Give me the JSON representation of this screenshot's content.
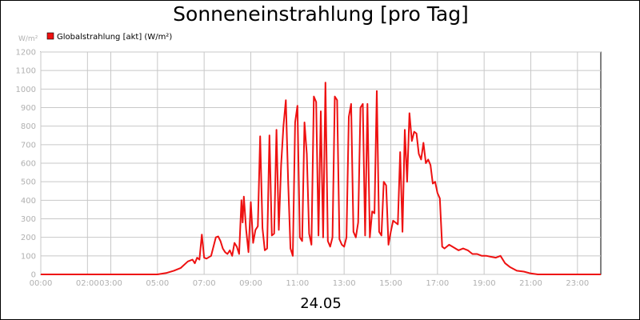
{
  "chart_data": {
    "type": "line",
    "title": "Sonneneinstrahlung [pro Tag]",
    "ylabel": "W/m²",
    "xlabel": "24.05",
    "ylim": [
      0,
      1200
    ],
    "xlim": [
      0,
      24
    ],
    "yticks": [
      0,
      100,
      200,
      300,
      400,
      500,
      600,
      700,
      800,
      900,
      1000,
      1100,
      1200
    ],
    "xticks": [
      {
        "label": "00:00",
        "x": 0
      },
      {
        "label": "02:00",
        "x": 2
      },
      {
        "label": "03:00",
        "x": 3
      },
      {
        "label": "05:00",
        "x": 5
      },
      {
        "label": "07:00",
        "x": 7
      },
      {
        "label": "09:00",
        "x": 9
      },
      {
        "label": "11:00",
        "x": 11
      },
      {
        "label": "13:00",
        "x": 13
      },
      {
        "label": "15:00",
        "x": 15
      },
      {
        "label": "17:00",
        "x": 17
      },
      {
        "label": "19:00",
        "x": 19
      },
      {
        "label": "21:00",
        "x": 21
      },
      {
        "label": "23:00",
        "x": 23
      }
    ],
    "grid": true,
    "legend": "top-left",
    "series": [
      {
        "name": "Globalstrahlung [akt] (W/m²)",
        "color": "#ee1111",
        "x": [
          0,
          5.0,
          5.4,
          5.7,
          6.0,
          6.3,
          6.5,
          6.6,
          6.7,
          6.8,
          6.9,
          7.0,
          7.1,
          7.3,
          7.5,
          7.6,
          7.7,
          7.8,
          7.9,
          8.0,
          8.1,
          8.2,
          8.3,
          8.4,
          8.5,
          8.6,
          8.65,
          8.7,
          8.8,
          8.9,
          9.0,
          9.1,
          9.2,
          9.3,
          9.4,
          9.5,
          9.6,
          9.7,
          9.8,
          9.9,
          10.0,
          10.1,
          10.2,
          10.3,
          10.4,
          10.5,
          10.6,
          10.7,
          10.8,
          10.9,
          11.0,
          11.1,
          11.2,
          11.3,
          11.4,
          11.5,
          11.6,
          11.7,
          11.8,
          11.9,
          12.0,
          12.1,
          12.2,
          12.3,
          12.4,
          12.5,
          12.6,
          12.7,
          12.8,
          12.9,
          13.0,
          13.1,
          13.2,
          13.3,
          13.4,
          13.5,
          13.6,
          13.7,
          13.8,
          13.9,
          14.0,
          14.1,
          14.2,
          14.3,
          14.4,
          14.5,
          14.6,
          14.7,
          14.8,
          14.9,
          15.0,
          15.1,
          15.2,
          15.3,
          15.4,
          15.5,
          15.6,
          15.7,
          15.8,
          15.9,
          16.0,
          16.1,
          16.2,
          16.3,
          16.4,
          16.5,
          16.6,
          16.7,
          16.8,
          16.9,
          17.0,
          17.1,
          17.2,
          17.3,
          17.5,
          17.7,
          17.9,
          18.1,
          18.3,
          18.5,
          18.7,
          18.9,
          19.1,
          19.3,
          19.5,
          19.7,
          19.9,
          20.1,
          20.4,
          20.7,
          21.0,
          21.3,
          21.6,
          24.0
        ],
        "values": [
          0,
          0,
          8,
          20,
          35,
          70,
          80,
          60,
          90,
          80,
          215,
          90,
          85,
          100,
          200,
          205,
          180,
          140,
          120,
          110,
          130,
          100,
          170,
          150,
          110,
          400,
          280,
          420,
          240,
          120,
          390,
          170,
          240,
          260,
          745,
          250,
          130,
          140,
          750,
          210,
          220,
          780,
          240,
          590,
          800,
          940,
          500,
          140,
          100,
          820,
          910,
          200,
          180,
          820,
          650,
          220,
          160,
          960,
          930,
          210,
          880,
          200,
          1035,
          180,
          150,
          200,
          960,
          940,
          190,
          160,
          150,
          200,
          850,
          920,
          230,
          200,
          280,
          900,
          920,
          210,
          920,
          200,
          340,
          330,
          990,
          230,
          210,
          500,
          480,
          160,
          230,
          290,
          280,
          270,
          660,
          230,
          780,
          500,
          870,
          720,
          770,
          760,
          650,
          620,
          710,
          600,
          620,
          590,
          490,
          500,
          440,
          410,
          150,
          140,
          160,
          145,
          130,
          140,
          130,
          110,
          110,
          100,
          100,
          95,
          90,
          100,
          60,
          40,
          20,
          15,
          5,
          0,
          0,
          0
        ]
      }
    ]
  }
}
